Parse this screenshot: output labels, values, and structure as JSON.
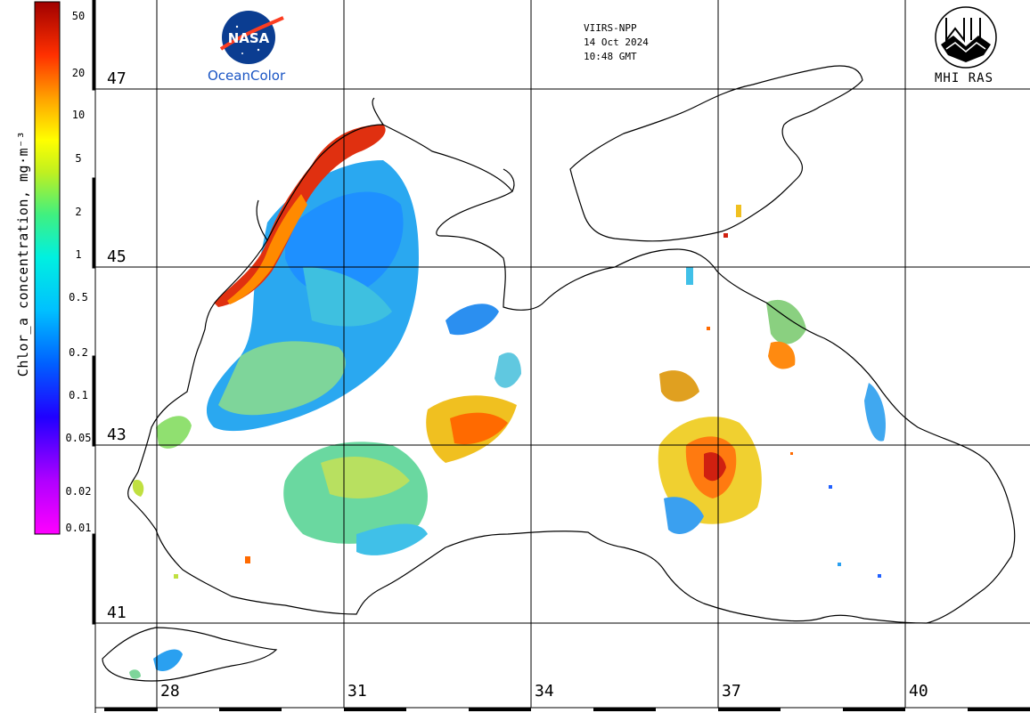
{
  "header": {
    "sensor": "VIIRS-NPP",
    "date": "14 Oct 2024",
    "time": "10:48 GMT"
  },
  "logos": {
    "nasa_text": "NASA",
    "oceancolor_text": "OceanColor",
    "mhi_text": "MHI RAS"
  },
  "colorbar": {
    "title": "Chlor_a concentration, mg·m⁻³",
    "ticks": [
      "50",
      "20",
      "10",
      "5",
      "2",
      "1",
      "0.5",
      "0.2",
      "0.1",
      "0.05",
      "0.02",
      "0.01"
    ],
    "scale": "log",
    "range": [
      0.01,
      50
    ],
    "colors": [
      "#ff00ff",
      "#8800ff",
      "#0000ff",
      "#0088ff",
      "#00ddff",
      "#00ffaa",
      "#88ff00",
      "#ffff00",
      "#ffaa00",
      "#ff3300",
      "#aa0000"
    ]
  },
  "grid": {
    "latitudes": [
      "47",
      "45",
      "43",
      "41"
    ],
    "longitudes": [
      "28",
      "31",
      "34",
      "37",
      "40"
    ]
  }
}
